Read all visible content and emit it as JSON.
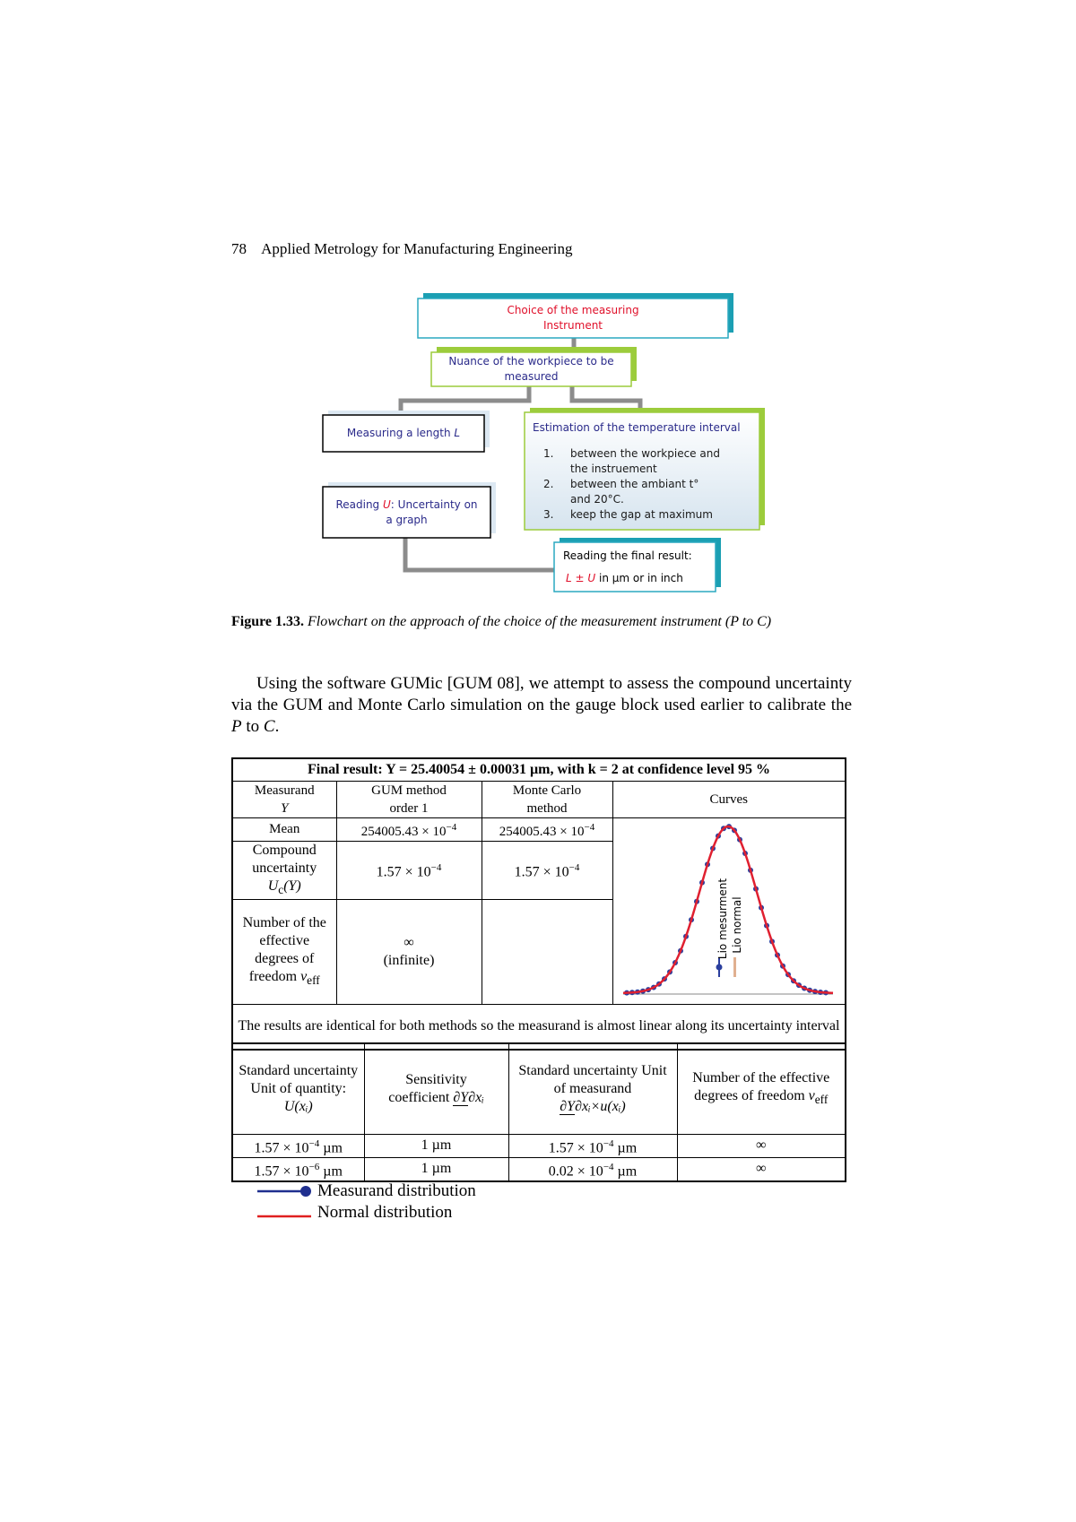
{
  "header": {
    "page_number": "78",
    "running_title": "Applied Metrology for Manufacturing Engineering"
  },
  "flowchart": {
    "choice": {
      "line1": "Choice of the measuring",
      "line2": "Instrument"
    },
    "nuance": {
      "line1": "Nuance of the workpiece to be",
      "line2": "measured"
    },
    "measuring": {
      "text": "Measuring a length",
      "symbol": "L"
    },
    "reading_u": {
      "text": "Reading",
      "symbol": "U",
      "rest": ": Uncertainty on a graph"
    },
    "estimation": {
      "title": "Estimation of the temperature interval",
      "items": [
        {
          "number": "1.",
          "text": "between the workpiece and the instruement"
        },
        {
          "number": "2.",
          "text": "between the ambiant t° and 20°C."
        },
        {
          "number": "3.",
          "text": "keep the gap at maximum"
        }
      ]
    },
    "final": {
      "title": "Reading the final result:",
      "formula": "L ± U",
      "rest": "in µm or in inch"
    }
  },
  "figure_caption": {
    "label": "Figure 1.33.",
    "text": "Flowchart on the approach of the choice of the measurement instrument (P to C)"
  },
  "paragraph": [
    "Using the software GUMic [GUM 08], we attempt to assess the compound uncertainty via the GUM and Monte Carlo simulation on the gauge block used earlier to calibrate the ",
    "P",
    " to ",
    "C",
    "."
  ],
  "table": {
    "title": "Final result: Y = 25.40054 ± 0.00031 µm, with k = 2 at confidence level 95 %",
    "header": {
      "measurand": {
        "line1": "Measurand",
        "line2": "Y"
      },
      "gum": {
        "line1": "GUM method",
        "line2": "order 1"
      },
      "monte_carlo": {
        "line1": "Monte Carlo",
        "line2": "method"
      },
      "curves": "Curves"
    },
    "mean": {
      "label": "Mean",
      "gum": {
        "mantissa": "254005.43 × 10",
        "exp": "−4"
      },
      "monte_carlo": {
        "mantissa": "254005.43 × 10",
        "exp": "−4"
      }
    },
    "compound": {
      "label": "Compound uncertainty",
      "symbol": {
        "base": "U",
        "sub": "c",
        "rest": "(Y)"
      },
      "gum": {
        "mantissa": "1.57 × 10",
        "exp": "−4"
      },
      "monte_carlo": {
        "mantissa": "1.57 × 10",
        "exp": "−4"
      }
    },
    "dof": {
      "label": "Number of the effective degrees of freedom",
      "symbol": {
        "base": "ν",
        "sub": "eff"
      },
      "gum": {
        "value": "∞",
        "note": "(infinite)"
      }
    },
    "curve_labels": [
      "Lio mesurment",
      "Lio normal"
    ],
    "note": "The results are identical for both methods so the measurand is almost linear along its uncertainty interval",
    "header2": {
      "standard": {
        "text": "Standard uncertainty Unit of quantity:",
        "symbol": "U(xᵢ)"
      },
      "sensitivity": {
        "label": "Sensitivity",
        "coefficient": "coefficient",
        "numerator": "∂Y",
        "denominator": "∂xᵢ"
      },
      "std_measurand": {
        "text": "Standard uncertainty Unit of measurand",
        "numerator": "∂Y",
        "denominator": "∂xᵢ",
        "factor": "×u(xᵢ)"
      },
      "dof": {
        "text": "Number of the effective degrees of freedom",
        "symbol": {
          "base": "ν",
          "sub": "eff"
        }
      }
    },
    "rows": [
      {
        "u": {
          "mantissa": "1.57 × 10",
          "exp": "−4",
          "unit": "µm"
        },
        "sensitivity": "1 µm",
        "std": {
          "mantissa": "1.57 × 10",
          "exp": "−4",
          "unit": "µm"
        },
        "dof": "∞"
      },
      {
        "u": {
          "mantissa": "1.57 × 10",
          "exp": "−6",
          "unit": "µm"
        },
        "sensitivity": "1 µm",
        "std": {
          "mantissa": "0.02 × 10",
          "exp": "−4",
          "unit": "µm"
        },
        "dof": "∞"
      }
    ]
  },
  "legend": [
    "Measurand distribution",
    "Normal distribution"
  ]
}
